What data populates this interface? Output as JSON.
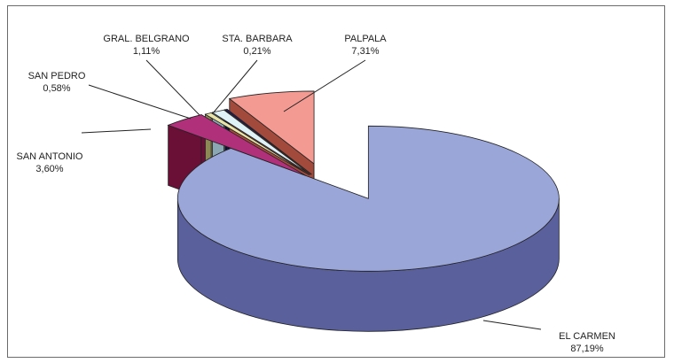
{
  "chart_data": {
    "type": "pie",
    "style": "3d-exploded",
    "title": "",
    "slices": [
      {
        "name": "EL CARMEN",
        "value_label": "87,19%",
        "value": 87.19,
        "color": "#9aa5d8",
        "side_color": "#59609c"
      },
      {
        "name": "SAN ANTONIO",
        "value_label": "3,60%",
        "value": 3.6,
        "color": "#b0307a",
        "side_color": "#6a1036"
      },
      {
        "name": "SAN PEDRO",
        "value_label": "0,58%",
        "value": 0.58,
        "color": "#e8e3a8",
        "side_color": "#8c8a55"
      },
      {
        "name": "GRAL. BELGRANO",
        "value_label": "1,11%",
        "value": 1.11,
        "color": "#dff2f8",
        "side_color": "#8aa7b3"
      },
      {
        "name": "STA. BARBARA",
        "value_label": "0,21%",
        "value": 0.21,
        "color": "#1c1c66",
        "side_color": "#0b0b33"
      },
      {
        "name": "PALPALA",
        "value_label": "7,31%",
        "value": 7.31,
        "color": "#f39a92",
        "side_color": "#a24a3c"
      }
    ]
  }
}
